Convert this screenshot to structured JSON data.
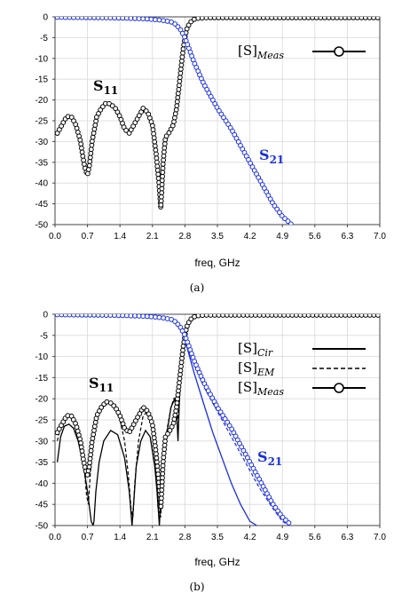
{
  "chart_data": [
    {
      "type": "line",
      "caption": "(a)",
      "xlabel": "freq, GHz",
      "ylabel": "",
      "xlim": [
        0.0,
        7.0
      ],
      "ylim": [
        -50,
        0
      ],
      "x_ticks": [
        "0.0",
        "0.7",
        "1.4",
        "2.1",
        "2.8",
        "3.5",
        "4.2",
        "4.9",
        "5.6",
        "6.3",
        "7.0"
      ],
      "y_ticks": [
        "0",
        "-5",
        "-10",
        "-15",
        "-20",
        "-25",
        "-30",
        "-35",
        "-40",
        "-45",
        "-50"
      ],
      "grid": true,
      "annotations": [
        {
          "text": "S",
          "sub": "11",
          "color": "#000000"
        },
        {
          "text": "S",
          "sub": "21",
          "color": "#1a2ee0"
        }
      ],
      "legend": {
        "position": "top-right",
        "entries": [
          {
            "text": "[S]",
            "sub": "Meas",
            "style": "solid-circle"
          }
        ]
      },
      "series": [
        {
          "name": "S11 Meas",
          "color": "#000000",
          "marker": "circle",
          "x": [
            0.05,
            0.15,
            0.25,
            0.35,
            0.45,
            0.55,
            0.62,
            0.66,
            0.7,
            0.74,
            0.8,
            0.9,
            1.0,
            1.1,
            1.2,
            1.3,
            1.4,
            1.5,
            1.6,
            1.7,
            1.8,
            1.9,
            2.0,
            2.1,
            2.18,
            2.24,
            2.28,
            2.3,
            2.33,
            2.38,
            2.45,
            2.55,
            2.62,
            2.68,
            2.72,
            2.76,
            2.8,
            2.84,
            2.88,
            2.94,
            3.0,
            3.1,
            3.3,
            3.6,
            4.0,
            4.5,
            5.0,
            5.5,
            6.0,
            6.5,
            7.0
          ],
          "y": [
            -28,
            -26,
            -24,
            -24,
            -26,
            -30,
            -35,
            -37,
            -38,
            -36,
            -30,
            -24,
            -22,
            -20.7,
            -21,
            -22,
            -24,
            -27,
            -28,
            -26,
            -24,
            -22,
            -23,
            -26,
            -33,
            -40,
            -46,
            -42,
            -35,
            -29,
            -28,
            -26,
            -22,
            -16,
            -12,
            -8,
            -5,
            -3,
            -2,
            -1,
            -0.6,
            -0.3,
            -0.2,
            -0.2,
            -0.2,
            -0.2,
            -0.2,
            -0.2,
            -0.2,
            -0.2,
            -0.2
          ]
        },
        {
          "name": "S21 Meas",
          "color": "#1a2ee0",
          "marker": "circle",
          "x": [
            0.05,
            0.5,
            1.0,
            1.5,
            2.0,
            2.3,
            2.5,
            2.6,
            2.7,
            2.8,
            2.9,
            3.0,
            3.2,
            3.5,
            3.8,
            4.1,
            4.4,
            4.7,
            4.9,
            5.1
          ],
          "y": [
            -0.1,
            -0.15,
            -0.2,
            -0.3,
            -0.5,
            -0.8,
            -1.2,
            -1.8,
            -3,
            -5,
            -8,
            -11,
            -16,
            -22,
            -27,
            -33,
            -39,
            -45,
            -48,
            -50
          ]
        }
      ]
    },
    {
      "type": "line",
      "caption": "(b)",
      "xlabel": "freq, GHz",
      "ylabel": "",
      "xlim": [
        0.0,
        7.0
      ],
      "ylim": [
        -50,
        0
      ],
      "x_ticks": [
        "0.0",
        "0.7",
        "1.4",
        "2.1",
        "2.8",
        "3.5",
        "4.2",
        "4.9",
        "5.6",
        "6.3",
        "7.0"
      ],
      "y_ticks": [
        "0",
        "-5",
        "-10",
        "-15",
        "-20",
        "-25",
        "-30",
        "-35",
        "-40",
        "-45",
        "-50"
      ],
      "grid": true,
      "annotations": [
        {
          "text": "S",
          "sub": "11",
          "color": "#000000"
        },
        {
          "text": "S",
          "sub": "21",
          "color": "#1a2ee0"
        }
      ],
      "legend": {
        "position": "top-right",
        "entries": [
          {
            "text": "[S]",
            "sub": "Cir",
            "style": "solid"
          },
          {
            "text": "[S]",
            "sub": "EM",
            "style": "dashed"
          },
          {
            "text": "[S]",
            "sub": "Meas",
            "style": "solid-circle"
          }
        ]
      },
      "series": [
        {
          "name": "S11 Cir",
          "color": "#000000",
          "style": "solid",
          "x": [
            0.05,
            0.12,
            0.2,
            0.3,
            0.4,
            0.5,
            0.6,
            0.7,
            0.78,
            0.82,
            0.84,
            0.88,
            0.95,
            1.05,
            1.2,
            1.35,
            1.5,
            1.6,
            1.66,
            1.7,
            1.75,
            1.85,
            1.95,
            2.05,
            2.15,
            2.2,
            2.25,
            2.3,
            2.4,
            2.5,
            2.58,
            2.62,
            2.65,
            2.7,
            2.78,
            2.85,
            2.95,
            3.1,
            3.4,
            4.0,
            5.0,
            6.0,
            7.0
          ],
          "y": [
            -35,
            -29,
            -26.5,
            -26,
            -27,
            -30,
            -35,
            -42,
            -49,
            -50,
            -49,
            -42,
            -35,
            -30,
            -27.5,
            -28.5,
            -34,
            -42,
            -50,
            -44,
            -36,
            -30,
            -27.5,
            -29,
            -36,
            -42,
            -50,
            -40,
            -29,
            -22,
            -20,
            -23,
            -30,
            -14,
            -6,
            -3,
            -1,
            -0.4,
            -0.15,
            -0.1,
            -0.1,
            -0.1,
            -0.1
          ]
        },
        {
          "name": "S11 EM",
          "color": "#000000",
          "style": "dashed",
          "x": [
            0.05,
            0.15,
            0.25,
            0.35,
            0.45,
            0.55,
            0.62,
            0.68,
            0.72,
            0.76,
            0.82,
            0.9,
            1.0,
            1.1,
            1.2,
            1.3,
            1.4,
            1.5,
            1.58,
            1.64,
            1.68,
            1.72,
            1.8,
            1.9,
            2.0,
            2.1,
            2.16,
            2.22,
            2.28,
            2.34,
            2.42,
            2.5,
            2.56,
            2.6,
            2.66,
            2.72,
            2.78,
            2.84,
            2.9,
            3.0,
            3.2,
            3.6,
            4.5,
            5.5,
            7.0
          ],
          "y": [
            -30,
            -25,
            -24,
            -24.5,
            -26,
            -30,
            -35,
            -43,
            -45,
            -38,
            -30,
            -24,
            -21.5,
            -20.5,
            -21,
            -22.5,
            -25,
            -30,
            -38,
            -46,
            -48,
            -40,
            -30,
            -24,
            -23,
            -26,
            -34,
            -46,
            -48,
            -34,
            -27,
            -22,
            -20,
            -21,
            -25,
            -12,
            -6,
            -3,
            -1.5,
            -0.6,
            -0.25,
            -0.15,
            -0.1,
            -0.1,
            -0.1
          ]
        },
        {
          "name": "S11 Meas",
          "color": "#000000",
          "marker": "circle",
          "x": [
            0.05,
            0.15,
            0.25,
            0.35,
            0.45,
            0.55,
            0.62,
            0.66,
            0.7,
            0.74,
            0.8,
            0.9,
            1.0,
            1.1,
            1.2,
            1.3,
            1.4,
            1.5,
            1.6,
            1.7,
            1.8,
            1.9,
            2.0,
            2.1,
            2.18,
            2.24,
            2.28,
            2.3,
            2.33,
            2.38,
            2.45,
            2.55,
            2.62,
            2.68,
            2.72,
            2.76,
            2.8,
            2.84,
            2.88,
            2.94,
            3.0,
            3.1,
            3.3,
            3.6,
            4.0,
            4.5,
            5.0,
            5.5,
            6.0,
            6.5,
            7.0
          ],
          "y": [
            -28,
            -26,
            -24,
            -24,
            -26,
            -30,
            -35,
            -37,
            -38,
            -36,
            -30,
            -24,
            -22,
            -20.7,
            -21,
            -22,
            -24,
            -27,
            -28,
            -26,
            -24,
            -22,
            -23,
            -26,
            -33,
            -40,
            -46,
            -42,
            -35,
            -29,
            -28,
            -26,
            -22,
            -16,
            -12,
            -8,
            -5,
            -3,
            -2,
            -1,
            -0.6,
            -0.3,
            -0.2,
            -0.2,
            -0.2,
            -0.2,
            -0.2,
            -0.2,
            -0.2,
            -0.2,
            -0.2
          ]
        },
        {
          "name": "S21 Cir",
          "color": "#1a2ee0",
          "style": "solid",
          "x": [
            0.05,
            0.5,
            1.0,
            1.5,
            2.0,
            2.3,
            2.5,
            2.6,
            2.7,
            2.8,
            2.9,
            3.0,
            3.2,
            3.4,
            3.6,
            3.8,
            4.0,
            4.2,
            4.35
          ],
          "y": [
            -0.1,
            -0.1,
            -0.15,
            -0.25,
            -0.4,
            -0.7,
            -1.2,
            -1.8,
            -3,
            -6,
            -10,
            -14,
            -21,
            -28,
            -34,
            -40,
            -45,
            -49,
            -50
          ]
        },
        {
          "name": "S21 EM",
          "color": "#1a2ee0",
          "style": "dashed",
          "x": [
            0.05,
            0.5,
            1.0,
            1.5,
            2.0,
            2.3,
            2.5,
            2.6,
            2.7,
            2.8,
            2.9,
            3.0,
            3.2,
            3.5,
            3.8,
            4.1,
            4.4,
            4.7,
            4.9,
            5.05
          ],
          "y": [
            -0.1,
            -0.15,
            -0.2,
            -0.3,
            -0.5,
            -0.8,
            -1.3,
            -2,
            -3.5,
            -6,
            -9,
            -12,
            -17,
            -23,
            -29,
            -35,
            -41,
            -46,
            -49,
            -50
          ]
        },
        {
          "name": "S21 Meas",
          "color": "#1a2ee0",
          "marker": "circle",
          "x": [
            0.05,
            0.5,
            1.0,
            1.5,
            2.0,
            2.3,
            2.5,
            2.6,
            2.7,
            2.8,
            2.9,
            3.0,
            3.2,
            3.5,
            3.8,
            4.1,
            4.4,
            4.7,
            4.9,
            5.1
          ],
          "y": [
            -0.1,
            -0.15,
            -0.2,
            -0.3,
            -0.5,
            -0.8,
            -1.2,
            -1.8,
            -3,
            -5,
            -8,
            -11,
            -16,
            -22,
            -27,
            -33,
            -39,
            -45,
            -48,
            -50
          ]
        }
      ]
    }
  ]
}
